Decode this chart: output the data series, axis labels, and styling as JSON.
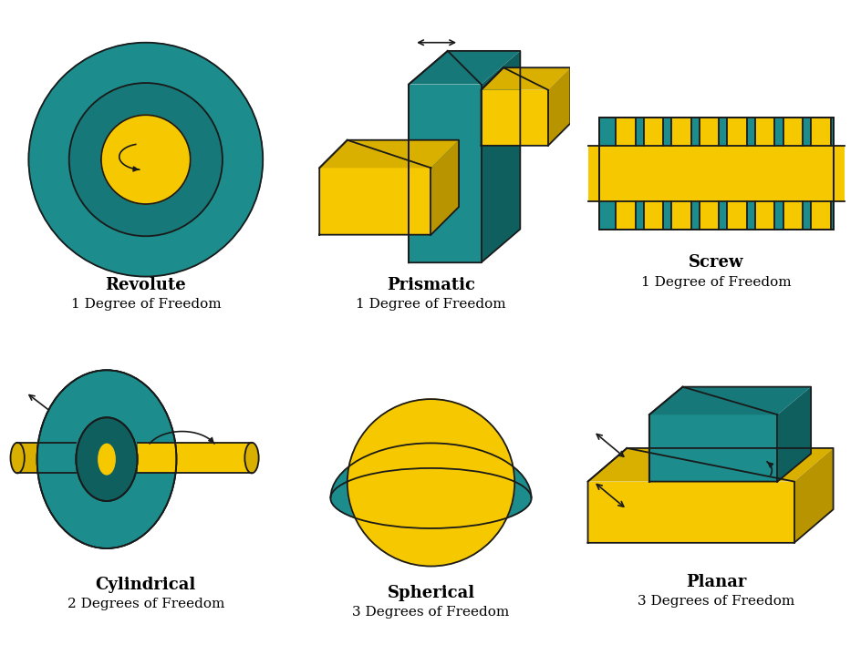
{
  "teal": "#1c8c8c",
  "teal_mid": "#167878",
  "teal_dark": "#0f5f5f",
  "yellow": "#f5c800",
  "yellow_mid": "#d9b000",
  "yellow_dark": "#b89400",
  "outline": "#1a1a1a",
  "bg": "#ffffff",
  "labels": [
    "Revolute",
    "Prismatic",
    "Screw",
    "Cylindrical",
    "Spherical",
    "Planar"
  ],
  "dof": [
    "1 Degree of Freedom",
    "1 Degree of Freedom",
    "1 Degree of Freedom",
    "2 Degrees of Freedom",
    "3 Degrees of Freedom",
    "3 Degrees of Freedom"
  ],
  "label_fontsize": 13,
  "dof_fontsize": 11
}
